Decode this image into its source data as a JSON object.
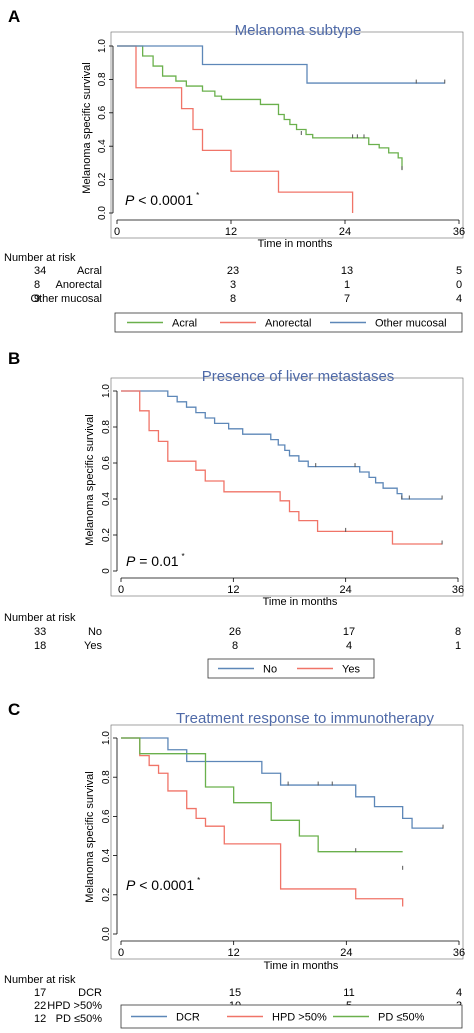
{
  "colors": {
    "green": "#6ab04c",
    "red": "#f07468",
    "blue": "#5d87b8",
    "title": "#4f6aa8",
    "axis": "#000000",
    "frame": "#666666"
  },
  "panels": [
    {
      "panel_label": "A",
      "risk_header": "Number at risk",
      "risk_rows": [
        {
          "label": "Acral",
          "values": [
            "34",
            "23",
            "13",
            "5"
          ]
        },
        {
          "label": "Anorectal",
          "values": [
            "8",
            "3",
            "1",
            "0"
          ]
        },
        {
          "label": "Other mucosal",
          "values": [
            "9",
            "8",
            "7",
            "4"
          ]
        }
      ]
    },
    {
      "panel_label": "B",
      "risk_header": "Number at risk",
      "risk_rows": [
        {
          "label": "No",
          "values": [
            "33",
            "26",
            "17",
            "8"
          ]
        },
        {
          "label": "Yes",
          "values": [
            "18",
            "8",
            "4",
            "1"
          ]
        }
      ]
    },
    {
      "panel_label": "C",
      "risk_header": "Number at risk",
      "risk_rows": [
        {
          "label": "DCR",
          "values": [
            "17",
            "15",
            "11",
            "4"
          ]
        },
        {
          "label": "HPD >50%",
          "values": [
            "22",
            "10",
            "5",
            "3"
          ]
        },
        {
          "label": "PD ≤50%",
          "values": [
            "12",
            "9",
            "5",
            "2"
          ]
        }
      ]
    }
  ],
  "chart_data": [
    {
      "type": "line",
      "subtype": "kaplan-meier",
      "title": "Melanoma subtype",
      "xlabel": "Time in months",
      "ylabel": "Melanoma specific survival",
      "annotation": {
        "p": "P",
        "rest": " < 0.0001",
        "sup": "*"
      },
      "xlim": [
        0,
        36
      ],
      "ylim": [
        0,
        1
      ],
      "xticks": [
        "0",
        "12",
        "24",
        "36"
      ],
      "yticks": [
        "0.0",
        "0.2",
        "0.4",
        "0.6",
        "0.8",
        "1.0"
      ],
      "legend": [
        "Acral",
        "Anorectal",
        "Other mucosal"
      ],
      "legend_position": "bottom",
      "grid": false,
      "series": [
        {
          "name": "Acral",
          "color": "#6ab04c",
          "steps": [
            [
              0,
              1.0
            ],
            [
              2.7,
              0.94
            ],
            [
              3.8,
              0.88
            ],
            [
              4.8,
              0.82
            ],
            [
              6.2,
              0.79
            ],
            [
              7.3,
              0.76
            ],
            [
              9.0,
              0.73
            ],
            [
              10.3,
              0.7
            ],
            [
              11.0,
              0.68
            ],
            [
              15.1,
              0.65
            ],
            [
              17.0,
              0.59
            ],
            [
              17.6,
              0.56
            ],
            [
              18.2,
              0.53
            ],
            [
              18.9,
              0.5
            ],
            [
              19.9,
              0.47
            ],
            [
              20.6,
              0.45
            ],
            [
              26.5,
              0.41
            ],
            [
              27.6,
              0.39
            ],
            [
              28.6,
              0.36
            ],
            [
              29.6,
              0.33
            ],
            [
              30.0,
              0.26
            ]
          ],
          "end": 30.0,
          "censor": [
            [
              19.4,
              0.47
            ],
            [
              24.8,
              0.45
            ],
            [
              25.3,
              0.45
            ],
            [
              26.0,
              0.45
            ],
            [
              30.0,
              0.26
            ]
          ]
        },
        {
          "name": "Anorectal",
          "color": "#f07468",
          "steps": [
            [
              0,
              1.0
            ],
            [
              2.0,
              0.75
            ],
            [
              6.8,
              0.625
            ],
            [
              8.0,
              0.5
            ],
            [
              9.0,
              0.375
            ],
            [
              12.0,
              0.25
            ],
            [
              17.0,
              0.125
            ],
            [
              24.8,
              0.0
            ]
          ],
          "end": 24.8,
          "censor": []
        },
        {
          "name": "Other mucosal",
          "color": "#5d87b8",
          "steps": [
            [
              0,
              1.0
            ],
            [
              9.0,
              0.889
            ],
            [
              20.0,
              0.778
            ]
          ],
          "end": 34.5,
          "censor": [
            [
              31.5,
              0.778
            ],
            [
              34.5,
              0.778
            ]
          ]
        }
      ]
    },
    {
      "type": "line",
      "subtype": "kaplan-meier",
      "title": "Presence of liver metastases",
      "xlabel": "Time in months",
      "ylabel": "Melanoma specific survival",
      "annotation": {
        "p": "P",
        "rest": " = 0.01",
        "sup": "*"
      },
      "xlim": [
        0,
        36
      ],
      "ylim": [
        0,
        1
      ],
      "xticks": [
        "0",
        "12",
        "24",
        "36"
      ],
      "yticks": [
        "0",
        "0.2",
        "0.4",
        "0.6",
        "0.8",
        "1.0"
      ],
      "legend": [
        "No",
        "Yes"
      ],
      "legend_position": "bottom",
      "grid": false,
      "series": [
        {
          "name": "No",
          "color": "#5d87b8",
          "steps": [
            [
              0,
              1.0
            ],
            [
              5.0,
              0.97
            ],
            [
              6.0,
              0.94
            ],
            [
              7.0,
              0.91
            ],
            [
              8.0,
              0.88
            ],
            [
              9.0,
              0.85
            ],
            [
              10.0,
              0.82
            ],
            [
              11.5,
              0.79
            ],
            [
              13.0,
              0.76
            ],
            [
              16.0,
              0.73
            ],
            [
              16.8,
              0.7
            ],
            [
              17.5,
              0.67
            ],
            [
              18.0,
              0.64
            ],
            [
              19.0,
              0.61
            ],
            [
              20.0,
              0.58
            ],
            [
              25.5,
              0.55
            ],
            [
              26.5,
              0.52
            ],
            [
              27.2,
              0.49
            ],
            [
              28.0,
              0.46
            ],
            [
              29.5,
              0.43
            ],
            [
              30.0,
              0.4
            ]
          ],
          "end": 34.3,
          "censor": [
            [
              20.8,
              0.58
            ],
            [
              25.0,
              0.58
            ],
            [
              30.0,
              0.4
            ],
            [
              30.8,
              0.4
            ],
            [
              34.3,
              0.4
            ]
          ]
        },
        {
          "name": "Yes",
          "color": "#f07468",
          "steps": [
            [
              0,
              1.0
            ],
            [
              2.0,
              0.89
            ],
            [
              3.0,
              0.78
            ],
            [
              4.0,
              0.72
            ],
            [
              5.0,
              0.61
            ],
            [
              8.0,
              0.56
            ],
            [
              9.0,
              0.5
            ],
            [
              11.0,
              0.44
            ],
            [
              17.0,
              0.39
            ],
            [
              18.0,
              0.33
            ],
            [
              19.0,
              0.28
            ],
            [
              21.0,
              0.22
            ],
            [
              29.0,
              0.15
            ]
          ],
          "end": 34.3,
          "censor": [
            [
              24.0,
              0.22
            ],
            [
              34.3,
              0.15
            ]
          ]
        }
      ]
    },
    {
      "type": "line",
      "subtype": "kaplan-meier",
      "title": "Treatment response to immunotherapy",
      "xlabel": "Time in months",
      "ylabel": "Melanoma specific survival",
      "annotation": {
        "p": "P",
        "rest": " < 0.0001",
        "sup": "*"
      },
      "xlim": [
        0,
        36
      ],
      "ylim": [
        0,
        1
      ],
      "xticks": [
        "0",
        "12",
        "24",
        "36"
      ],
      "yticks": [
        "0.0",
        "0.2",
        "0.4",
        "0.6",
        "0.8",
        "1.0"
      ],
      "legend": [
        "DCR",
        "HPD >50%",
        "PD ≤50%"
      ],
      "legend_position": "bottom",
      "grid": false,
      "series": [
        {
          "name": "DCR",
          "color": "#5d87b8",
          "steps": [
            [
              0,
              1.0
            ],
            [
              5.0,
              0.94
            ],
            [
              7.0,
              0.88
            ],
            [
              15.0,
              0.82
            ],
            [
              17.0,
              0.76
            ],
            [
              25.0,
              0.7
            ],
            [
              27.0,
              0.65
            ],
            [
              30.0,
              0.59
            ],
            [
              31.0,
              0.54
            ]
          ],
          "end": 34.3,
          "censor": [
            [
              17.8,
              0.76
            ],
            [
              21.0,
              0.76
            ],
            [
              22.5,
              0.76
            ],
            [
              34.3,
              0.54
            ]
          ]
        },
        {
          "name": "HPD >50%",
          "color": "#f07468",
          "steps": [
            [
              0,
              1.0
            ],
            [
              2.0,
              0.91
            ],
            [
              3.0,
              0.86
            ],
            [
              4.0,
              0.82
            ],
            [
              5.0,
              0.73
            ],
            [
              7.0,
              0.64
            ],
            [
              8.0,
              0.59
            ],
            [
              9.0,
              0.55
            ],
            [
              11.0,
              0.46
            ],
            [
              17.0,
              0.23
            ],
            [
              25.0,
              0.18
            ],
            [
              30.0,
              0.14
            ]
          ],
          "end": 30.0,
          "censor": []
        },
        {
          "name": "PD ≤50%",
          "color": "#6ab04c",
          "steps": [
            [
              0,
              1.0
            ],
            [
              2.0,
              0.92
            ],
            [
              9.0,
              0.75
            ],
            [
              12.0,
              0.67
            ],
            [
              16.0,
              0.58
            ],
            [
              19.0,
              0.5
            ],
            [
              21.0,
              0.42
            ]
          ],
          "end": 30.0,
          "censor": [
            [
              25.0,
              0.42
            ],
            [
              30.0,
              0.33
            ]
          ]
        }
      ]
    }
  ]
}
